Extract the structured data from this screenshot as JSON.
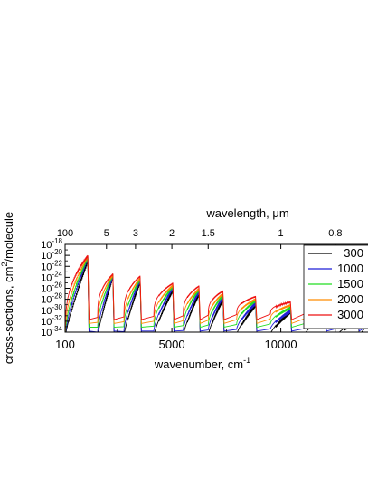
{
  "chart_data": {
    "type": "line",
    "title": "",
    "xlabel": "wavenumber, cm",
    "xlabel_sup": "-1",
    "top_xlabel": "wavelength, ",
    "top_xlabel_unit": "μm",
    "ylabel_pre": "cross-sections, cm",
    "ylabel_sup": "2",
    "ylabel_post": "/molecule",
    "xlim": [
      100,
      14000
    ],
    "ylim_log10": [
      -34,
      -18
    ],
    "y_scale": "log",
    "x_ticks": [
      {
        "value": 100,
        "label": "100"
      },
      {
        "value": 5000,
        "label": "5000"
      },
      {
        "value": 10000,
        "label": "10000"
      }
    ],
    "y_ticks": [
      {
        "exp": -18,
        "base": "10",
        "sup": "-18"
      },
      {
        "exp": -20,
        "base": "10",
        "sup": "-20"
      },
      {
        "exp": -22,
        "base": "10",
        "sup": "-22"
      },
      {
        "exp": -24,
        "base": "10",
        "sup": "-24"
      },
      {
        "exp": -26,
        "base": "10",
        "sup": "-26"
      },
      {
        "exp": -28,
        "base": "10",
        "sup": "-28"
      },
      {
        "exp": -30,
        "base": "10",
        "sup": "-30"
      },
      {
        "exp": -32,
        "base": "10",
        "sup": "-32"
      },
      {
        "exp": -34,
        "base": "10",
        "sup": "-34"
      }
    ],
    "top_ticks": [
      {
        "wavenumber": 100,
        "label": "100"
      },
      {
        "wavenumber": 2000,
        "label": "5"
      },
      {
        "wavenumber": 3333,
        "label": "3"
      },
      {
        "wavenumber": 5000,
        "label": "2"
      },
      {
        "wavenumber": 6667,
        "label": "1.5"
      },
      {
        "wavenumber": 10000,
        "label": "1"
      },
      {
        "wavenumber": 12500,
        "label": "0.8"
      }
    ],
    "legend_position": "top-right",
    "bands": [
      {
        "center": 1100,
        "floor": -34,
        "peaks": {
          "300": -20.6,
          "1000": -20.2,
          "1500": -20.2,
          "2000": -20.1,
          "3000": -20.0
        }
      },
      {
        "center": 2250,
        "floor": -34,
        "peaks": {
          "300": -23.5,
          "1000": -23.5,
          "1500": -23.4,
          "2000": -23.4,
          "3000": -23.3
        }
      },
      {
        "center": 3500,
        "floor": -34,
        "peaks": {
          "300": -24.4,
          "1000": -24.2,
          "1500": -24.1,
          "2000": -24.0,
          "3000": -23.7
        }
      },
      {
        "center": 5000,
        "floor": -34,
        "peaks": {
          "300": -25.9,
          "1000": -25.6,
          "1500": -25.4,
          "2000": -25.3,
          "3000": -25.0
        }
      },
      {
        "center": 6200,
        "floor": -34,
        "peaks": {
          "300": -26.6,
          "1000": -26.3,
          "1500": -26.0,
          "2000": -25.9,
          "3000": -25.5
        }
      },
      {
        "center": 7300,
        "floor": -34,
        "peaks": {
          "300": -27.6,
          "1000": -27.3,
          "1500": -27.0,
          "2000": -26.8,
          "3000": -26.4
        }
      },
      {
        "center": 8800,
        "floor": -34,
        "peaks": {
          "300": -28.6,
          "1000": -28.4,
          "1500": -28.0,
          "2000": -27.8,
          "3000": -27.4
        }
      },
      {
        "center": 10400,
        "floor": -34,
        "peaks": {
          "300": -29.8,
          "1000": -29.8,
          "1500": -29.3,
          "2000": -28.9,
          "3000": -28.4
        }
      },
      {
        "center": 12000,
        "floor": -34,
        "peaks": {
          "300": -30.8,
          "1000": -31.0,
          "1500": -30.4,
          "2000": -30.0,
          "3000": -29.4
        }
      },
      {
        "center": 13500,
        "floor": -34,
        "peaks": {
          "300": -31.8,
          "1000": -32.0,
          "1500": -31.4,
          "2000": -31.0,
          "3000": -30.3
        }
      }
    ],
    "series": [
      {
        "name": "300",
        "color": "#000000"
      },
      {
        "name": "1000",
        "color": "#1f1fd6"
      },
      {
        "name": "1500",
        "color": "#22dd22"
      },
      {
        "name": "2000",
        "color": "#ff8c00"
      },
      {
        "name": "3000",
        "color": "#ee1111"
      }
    ]
  }
}
